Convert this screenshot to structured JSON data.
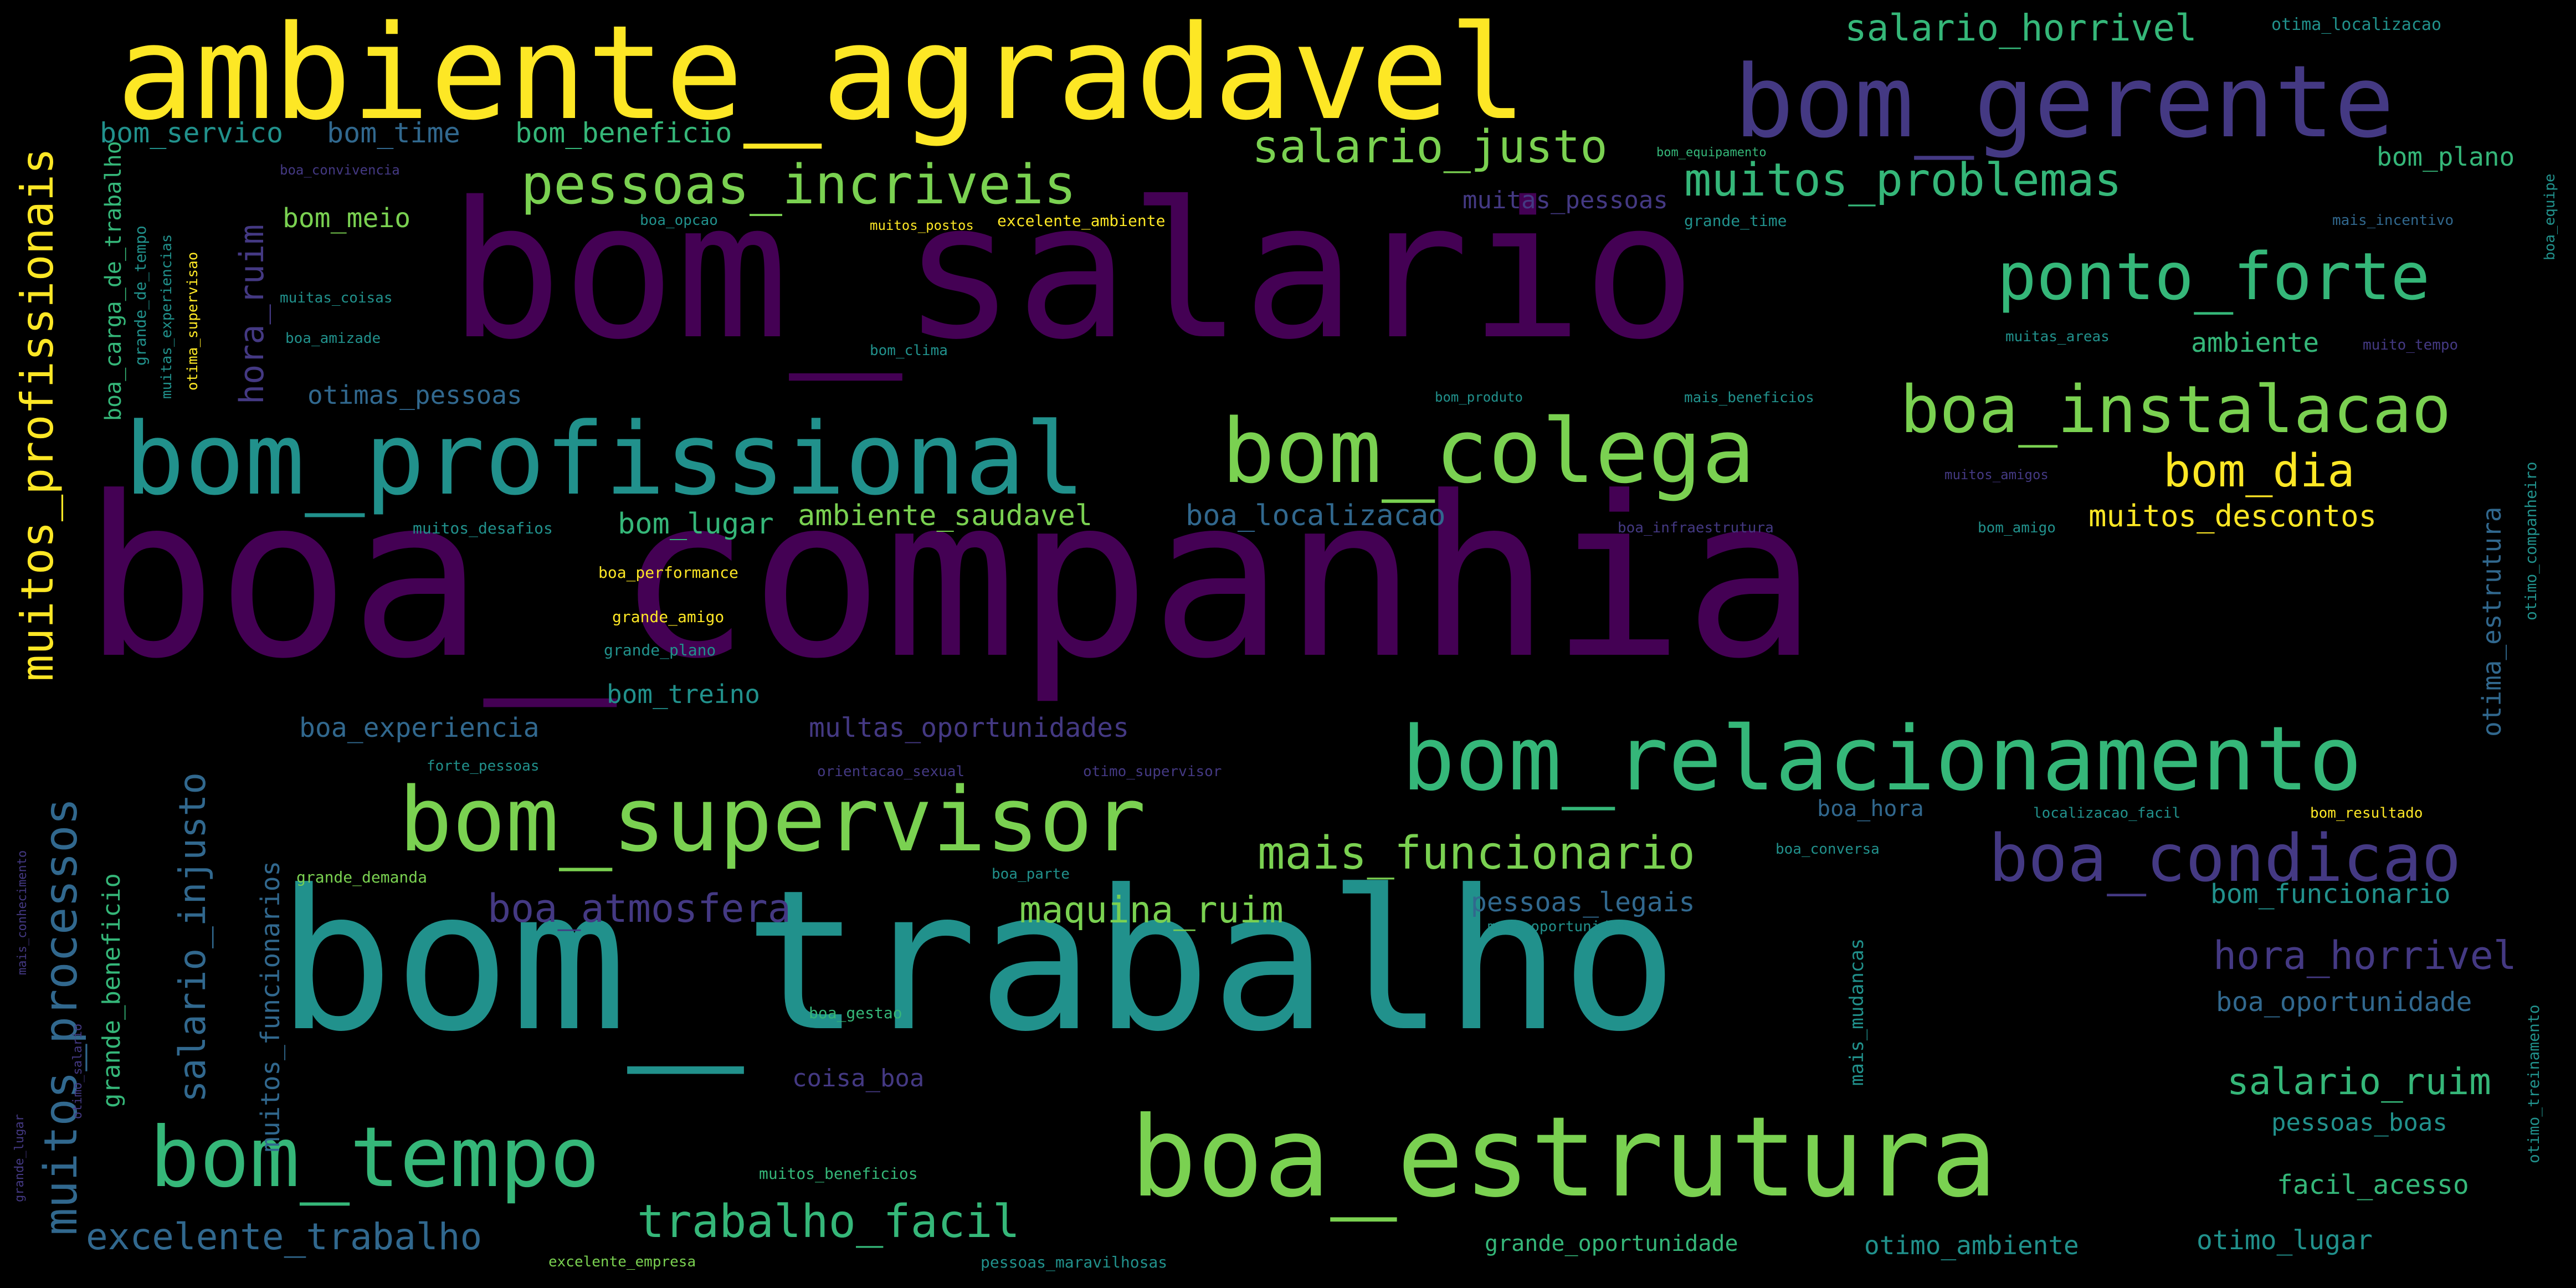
{
  "title": "",
  "palette": {
    "yellow": "#fde725",
    "lightgreen": "#7ad151",
    "green": "#35b779",
    "teal": "#21918c",
    "blue": "#31688e",
    "indigo": "#443983",
    "purple": "#440154"
  },
  "words": {
    "boa_companhia": "boa_companhia",
    "bom_trabalho": "bom_trabalho",
    "bom_salario": "bom_salario",
    "ambiente_agradavel": "ambiente_agradavel",
    "bom_profissional": "bom_profissional",
    "bom_gerente": "bom_gerente",
    "boa_estrutura": "boa_estrutura",
    "bom_relacionamento": "bom_relacionamento",
    "bom_supervisor": "bom_supervisor",
    "bom_colega": "bom_colega",
    "boa_instalacao": "boa_instalacao",
    "ponto_forte": "ponto_forte",
    "bom_tempo": "bom_tempo",
    "boa_condicao": "boa_condicao",
    "pessoas_incriveis": "pessoas_incriveis",
    "muitos_problemas": "muitos_problemas",
    "salario_justo": "salario_justo",
    "salario_horrivel": "salario_horrivel",
    "muitos_profissionais": "muitos_profissionais",
    "muitos_processos": "muitos_processos",
    "trabalho_facil": "trabalho_facil",
    "excelente_trabalho": "excelente_trabalho",
    "boa_atmosfera": "boa_atmosfera",
    "mais_funcionario": "mais_funcionario",
    "maquina_ruim": "maquina_ruim",
    "hora_horrivel": "hora_horrivel",
    "salario_ruim": "salario_ruim",
    "salario_injusto": "salario_injusto",
    "bom_dia": "bom_dia",
    "muitos_descontos": "muitos_descontos",
    "ambiente_saudavel": "ambiente_saudavel",
    "bom_lugar": "bom_lugar",
    "boa_localizacao": "boa_localizacao",
    "bom_servico": "bom_servico",
    "bom_time": "bom_time",
    "bom_beneficio": "bom_beneficio",
    "boa_carga_de_trabalho": "boa_carga_de_trabalho",
    "otimas_pessoas": "otimas_pessoas",
    "hora_ruim": "hora_ruim",
    "bom_meio": "bom_meio",
    "bom_plano": "bom_plano",
    "ambiente": "ambiente",
    "boa_experiencia": "boa_experiencia",
    "multas_oportunidades": "multas_oportunidades",
    "bom_treino": "bom_treino",
    "pessoas_legais": "pessoas_legais",
    "bom_funcionario": "bom_funcionario",
    "boa_oportunidade": "boa_oportunidade",
    "pessoas_boas": "pessoas_boas",
    "facil_acesso": "facil_acesso",
    "otimo_lugar": "otimo_lugar",
    "otimo_ambiente": "otimo_ambiente",
    "grande_oportunidade": "grande_oportunidade",
    "boa_hora": "boa_hora",
    "coisa_boa": "coisa_boa",
    "muitos_funcionarios": "muitos_funcionarios",
    "grande_beneficio": "grande_beneficio",
    "muitas_pessoas": "muitas_pessoas",
    "otima_estrutura": "otima_estrutura",
    "otima_localizacao": "otima_localizacao",
    "bom_equipamento": "bom_equipamento",
    "boa_convivencia": "boa_convivencia",
    "excelente_ambiente": "excelente_ambiente",
    "grande_time": "grande_time",
    "mais_incentivo": "mais_incentivo",
    "boa_performance": "boa_performance",
    "grande_amigo": "grande_amigo",
    "grande_plano": "grande_plano",
    "forte_pessoas": "forte_pessoas",
    "bom_resultado": "bom_resultado",
    "localizacao_facil": "localizacao_facil",
    "boa_conversa": "boa_conversa",
    "excelente_empresa": "excelente_empresa",
    "pessoas_maravilhosas": "pessoas_maravilhosas",
    "muitos_beneficios": "muitos_beneficios",
    "boa_gestao": "boa_gestao",
    "bom_produto": "bom_produto",
    "mais_beneficios": "mais_beneficios",
    "grande_demanda": "grande_demanda",
    "mais_oportunidade": "mais_oportunidade",
    "boa_equipe": "boa_equipe",
    "bom_clima": "bom_clima",
    "boa_amizade": "boa_amizade",
    "muitas_coisas": "muitas_coisas",
    "muitas_areas": "muitas_areas",
    "muitos_desafios": "muitos_desafios",
    "boa_infraestrutura": "boa_infraestrutura",
    "bom_amigo": "bom_amigo",
    "muitos_amigos": "muitos_amigos",
    "orientacao_sexual": "orientacao_sexual",
    "otimo_supervisor": "otimo_supervisor",
    "boa_parte": "boa_parte",
    "grande_de_tempo": "grande_de_tempo",
    "otimo_companheiro": "otimo_companheiro",
    "mais_mudancas": "mais_mudancas",
    "muito_tempo": "muito_tempo",
    "muitos_postos": "muitos_postos",
    "muitas_experiencias": "muitas_experiencias",
    "otima_supervisao": "otima_supervisao",
    "mais_conhecimento": "mais_conhecimento",
    "otimo_treinamento": "otimo_treinamento",
    "boa_opcao": "boa_opcao",
    "grande_lugar": "grande_lugar",
    "otimo_salario": "otimo_salario"
  }
}
